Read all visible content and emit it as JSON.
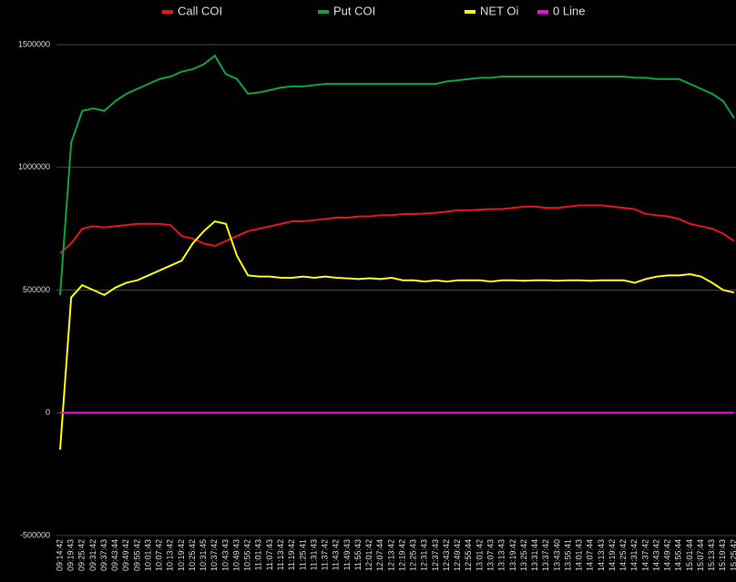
{
  "chart_data": {
    "type": "line",
    "categories": [
      "09:14:42",
      "09:19:43",
      "09:25:42",
      "09:31:42",
      "09:37:43",
      "09:43:44",
      "09:49:42",
      "09:55:42",
      "10:01:43",
      "10:07:42",
      "10:13:42",
      "10:19:42",
      "10:25:42",
      "10:31:45",
      "10:37:42",
      "10:43:43",
      "10:49:43",
      "10:55:42",
      "11:01:43",
      "11:07:43",
      "11:13:42",
      "11:19:42",
      "11:25:41",
      "11:31:43",
      "11:37:42",
      "11:43:42",
      "11:49:43",
      "11:55:43",
      "12:01:42",
      "12:07:44",
      "12:13:42",
      "12:19:42",
      "12:25:43",
      "12:31:43",
      "12:37:43",
      "12:43:42",
      "12:49:42",
      "12:55:44",
      "13:01:42",
      "13:07:43",
      "13:13:43",
      "13:19:42",
      "13:25:42",
      "13:31:44",
      "13:37:42",
      "13:43:40",
      "13:55:41",
      "14:01:43",
      "14:07:44",
      "14:13:43",
      "14:19:42",
      "14:25:42",
      "14:31:42",
      "14:37:42",
      "14:43:42",
      "14:49:42",
      "14:55:44",
      "15:01:44",
      "15:07:44",
      "15:13:43",
      "15:19:43",
      "15:25:42"
    ],
    "series": [
      {
        "name": "Call COI",
        "color": "#e8141c",
        "values": [
          650000,
          690000,
          750000,
          760000,
          755000,
          760000,
          765000,
          770000,
          770000,
          770000,
          765000,
          720000,
          710000,
          690000,
          680000,
          700000,
          720000,
          740000,
          750000,
          760000,
          770000,
          780000,
          780000,
          785000,
          790000,
          795000,
          795000,
          800000,
          800000,
          805000,
          805000,
          810000,
          810000,
          812000,
          815000,
          820000,
          825000,
          825000,
          828000,
          830000,
          830000,
          835000,
          840000,
          840000,
          835000,
          835000,
          840000,
          845000,
          845000,
          845000,
          840000,
          835000,
          830000,
          810000,
          805000,
          800000,
          790000,
          770000,
          760000,
          750000,
          730000,
          700000
        ]
      },
      {
        "name": "Put COI",
        "color": "#0ba344",
        "values": [
          480000,
          1100000,
          1230000,
          1240000,
          1230000,
          1270000,
          1300000,
          1320000,
          1340000,
          1360000,
          1370000,
          1390000,
          1400000,
          1420000,
          1455000,
          1380000,
          1360000,
          1300000,
          1305000,
          1315000,
          1325000,
          1330000,
          1330000,
          1335000,
          1340000,
          1340000,
          1340000,
          1340000,
          1340000,
          1340000,
          1340000,
          1340000,
          1340000,
          1340000,
          1340000,
          1350000,
          1355000,
          1360000,
          1365000,
          1365000,
          1370000,
          1370000,
          1370000,
          1370000,
          1370000,
          1370000,
          1370000,
          1370000,
          1370000,
          1370000,
          1370000,
          1370000,
          1365000,
          1365000,
          1360000,
          1360000,
          1360000,
          1340000,
          1320000,
          1300000,
          1270000,
          1200000
        ]
      },
      {
        "name": "NET Oi",
        "color": "#ffff00",
        "values": [
          -150000,
          470000,
          520000,
          500000,
          480000,
          510000,
          530000,
          540000,
          560000,
          580000,
          600000,
          620000,
          690000,
          740000,
          780000,
          770000,
          640000,
          560000,
          555000,
          555000,
          550000,
          550000,
          555000,
          550000,
          555000,
          550000,
          548000,
          545000,
          548000,
          545000,
          550000,
          540000,
          540000,
          535000,
          540000,
          535000,
          540000,
          540000,
          540000,
          535000,
          540000,
          540000,
          538000,
          540000,
          540000,
          538000,
          540000,
          540000,
          538000,
          540000,
          540000,
          540000,
          530000,
          545000,
          555000,
          560000,
          560000,
          565000,
          555000,
          530000,
          500000,
          490000
        ]
      },
      {
        "name": "0 Line",
        "color": "#ff00ff",
        "values": [
          0,
          0,
          0,
          0,
          0,
          0,
          0,
          0,
          0,
          0,
          0,
          0,
          0,
          0,
          0,
          0,
          0,
          0,
          0,
          0,
          0,
          0,
          0,
          0,
          0,
          0,
          0,
          0,
          0,
          0,
          0,
          0,
          0,
          0,
          0,
          0,
          0,
          0,
          0,
          0,
          0,
          0,
          0,
          0,
          0,
          0,
          0,
          0,
          0,
          0,
          0,
          0,
          0,
          0,
          0,
          0,
          0,
          0,
          0,
          0,
          0,
          0
        ]
      }
    ],
    "ylim": [
      -500000,
      1500000
    ],
    "yticks": [
      -500000,
      0,
      500000,
      1000000,
      1500000
    ],
    "grid": true,
    "legend": "top"
  }
}
